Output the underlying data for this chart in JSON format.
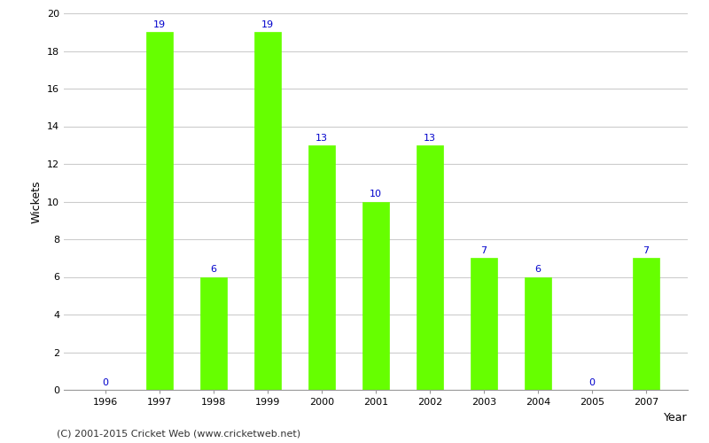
{
  "years": [
    "1996",
    "1997",
    "1998",
    "1999",
    "2000",
    "2001",
    "2002",
    "2003",
    "2004",
    "2005",
    "2007"
  ],
  "wickets": [
    0,
    19,
    6,
    19,
    13,
    10,
    13,
    7,
    6,
    0,
    7
  ],
  "bar_color": "#66ff00",
  "bar_edge_color": "#66ff00",
  "label_color": "#0000cc",
  "label_fontsize": 8,
  "xlabel": "Year",
  "ylabel": "Wickets",
  "ylim": [
    0,
    20
  ],
  "yticks": [
    0,
    2,
    4,
    6,
    8,
    10,
    12,
    14,
    16,
    18,
    20
  ],
  "grid_color": "#cccccc",
  "background_color": "#ffffff",
  "footer_text": "(C) 2001-2015 Cricket Web (www.cricketweb.net)",
  "footer_fontsize": 8,
  "footer_color": "#333333",
  "xlabel_fontsize": 9,
  "ylabel_fontsize": 9,
  "tick_fontsize": 8,
  "bar_width": 0.5
}
